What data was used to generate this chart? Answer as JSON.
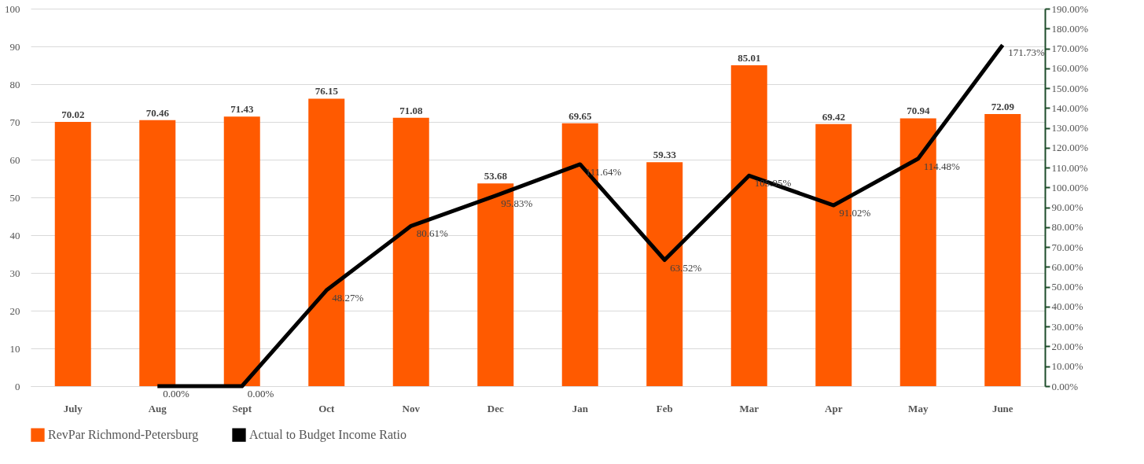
{
  "chart_data": {
    "type": "bar",
    "categories": [
      "July",
      "Aug",
      "Sept",
      "Oct",
      "Nov",
      "Dec",
      "Jan",
      "Feb",
      "Mar",
      "Apr",
      "May",
      "June"
    ],
    "series": [
      {
        "name": "RevPar Richmond-Petersburg",
        "color": "#ff5a00",
        "values": [
          70.02,
          70.46,
          71.43,
          76.15,
          71.08,
          53.68,
          69.65,
          59.33,
          85.01,
          69.42,
          70.94,
          72.09
        ],
        "value_labels": [
          "70.02",
          "70.46",
          "71.43",
          "76.15",
          "71.08",
          "53.68",
          "69.65",
          "59.33",
          "85.01",
          "69.42",
          "70.94",
          "72.09"
        ]
      },
      {
        "name": "Actual to Budget Income Ratio",
        "type": "line",
        "axis": "y2",
        "color": "#000000",
        "values": [
          null,
          0,
          0,
          48.27,
          80.61,
          95.83,
          111.64,
          63.52,
          105.95,
          91.02,
          114.48,
          171.73
        ],
        "value_labels": [
          null,
          "0.00%",
          "0.00%",
          "48.27%",
          "80.61%",
          "95.83%",
          "111.64%",
          "63.52%",
          "105.95%",
          "91.02%",
          "114.48%",
          "171.73%"
        ]
      }
    ],
    "ylim": [
      0,
      100
    ],
    "yticks": [
      0,
      10,
      20,
      30,
      40,
      50,
      60,
      70,
      80,
      90,
      100
    ],
    "y2lim": [
      0,
      190
    ],
    "y2ticks": [
      {
        "value": 0,
        "label": "0.00%"
      },
      {
        "value": 10,
        "label": "10.00%"
      },
      {
        "value": 20,
        "label": "20.00%"
      },
      {
        "value": 30,
        "label": "30.00%"
      },
      {
        "value": 40,
        "label": "40.00%"
      },
      {
        "value": 50,
        "label": "50.00%"
      },
      {
        "value": 60,
        "label": "60.00%"
      },
      {
        "value": 70,
        "label": "70.00%"
      },
      {
        "value": 80,
        "label": "80.00%"
      },
      {
        "value": 90,
        "label": "90.00%"
      },
      {
        "value": 100,
        "label": "100.00%"
      },
      {
        "value": 110,
        "label": "110.00%"
      },
      {
        "value": 120,
        "label": "120.00%"
      },
      {
        "value": 130,
        "label": "130.00%"
      },
      {
        "value": 140,
        "label": "140.00%"
      },
      {
        "value": 150,
        "label": "150.00%"
      },
      {
        "value": 160,
        "label": "160.00%"
      },
      {
        "value": 170,
        "label": "170.00%"
      },
      {
        "value": 180,
        "label": "180.00%"
      },
      {
        "value": 190,
        "label": "190.00%"
      }
    ],
    "grid": "y",
    "legend": "bottom"
  }
}
